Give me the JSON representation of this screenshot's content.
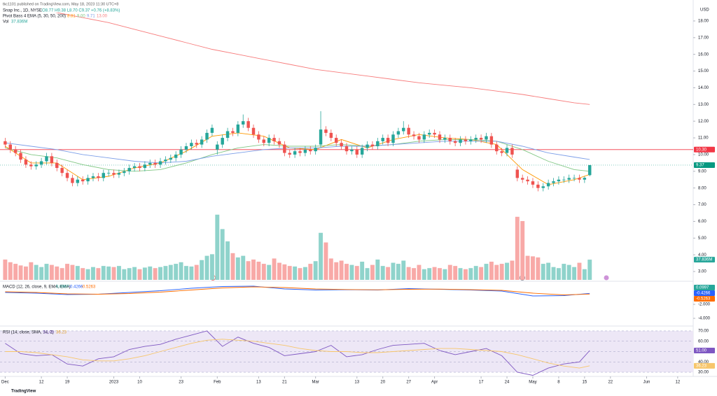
{
  "header": {
    "publisher": "tkc1101 published on TradingView.com, May 18, 2023 11:30 UTC+8",
    "currency": "USD",
    "logo": "TradingView"
  },
  "chart_data": [
    {
      "type": "candlestick",
      "title": "Snap Inc., 1D, NYSE",
      "ohlc_text": "O8.77 H9.38 L8.70 C9.37 +0.76 (+8.83%)",
      "xlim": [
        -1,
        133
      ],
      "ylim": [
        2.5,
        18.5
      ],
      "yticks": [
        {
          "value": 3,
          "label": "3.00"
        },
        {
          "value": 4,
          "label": "4.00"
        },
        {
          "value": 5,
          "label": "5.00"
        },
        {
          "value": 6,
          "label": "6.00"
        },
        {
          "value": 7,
          "label": "7.00"
        },
        {
          "value": 8,
          "label": "8.00"
        },
        {
          "value": 9,
          "label": "9.00"
        },
        {
          "value": 10,
          "label": "10.00"
        },
        {
          "value": 11,
          "label": "11.00"
        },
        {
          "value": 12,
          "label": "12.00"
        },
        {
          "value": 13,
          "label": "13.00"
        },
        {
          "value": 14,
          "label": "14.00"
        },
        {
          "value": 15,
          "label": "15.00"
        },
        {
          "value": 16,
          "label": "16.00"
        },
        {
          "value": 17,
          "label": "17.00"
        },
        {
          "value": 18,
          "label": "18.00"
        }
      ],
      "up_color": "#26a69a",
      "down_color": "#ef5350",
      "open": [
        10.8,
        10.6,
        10.3,
        10.1,
        9.7,
        9.4,
        9.3,
        9.4,
        9.6,
        9.9,
        9.5,
        9.2,
        8.9,
        8.6,
        8.3,
        8.5,
        8.4,
        8.6,
        8.7,
        8.6,
        8.9,
        8.9,
        8.8,
        8.9,
        9.0,
        9.2,
        9.3,
        9.2,
        9.4,
        9.5,
        9.4,
        9.6,
        9.7,
        9.8,
        10.0,
        10.3,
        10.5,
        10.7,
        10.6,
        10.9,
        11.3,
        10.3,
        10.6,
        11.0,
        11.4,
        11.3,
        11.8,
        12.0,
        11.6,
        11.2,
        10.9,
        10.7,
        11.0,
        10.8,
        10.6,
        10.1,
        10.0,
        10.2,
        10.1,
        10.3,
        10.2,
        10.6,
        11.5,
        11.3,
        11.0,
        10.7,
        10.5,
        10.2,
        10.3,
        10.0,
        10.4,
        10.6,
        10.5,
        10.8,
        11.0,
        10.7,
        11.2,
        11.4,
        11.6,
        11.2,
        11.1,
        10.9,
        11.2,
        11.3,
        11.2,
        10.9,
        11.0,
        10.8,
        10.7,
        10.9,
        10.8,
        10.9,
        11.0,
        10.9,
        11.1,
        10.6,
        10.2,
        10.1,
        10.4,
        9.1,
        8.6,
        8.5,
        8.4,
        8.2,
        8.0,
        8.1,
        8.3,
        8.4,
        8.5,
        8.5,
        8.6,
        8.6,
        8.5,
        8.77
      ],
      "high": [
        11.0,
        10.8,
        10.5,
        10.3,
        9.9,
        9.6,
        9.6,
        9.8,
        10.1,
        10.1,
        9.7,
        9.4,
        9.1,
        8.8,
        8.7,
        8.7,
        8.8,
        8.9,
        8.9,
        9.1,
        9.1,
        9.1,
        9.1,
        9.2,
        9.4,
        9.5,
        9.5,
        9.6,
        9.7,
        9.7,
        9.8,
        9.9,
        10.0,
        10.2,
        10.5,
        10.7,
        10.9,
        10.9,
        11.1,
        11.5,
        11.8,
        10.8,
        11.2,
        11.6,
        11.6,
        12.0,
        12.4,
        12.2,
        11.8,
        11.4,
        11.1,
        11.2,
        11.2,
        11.0,
        10.8,
        10.3,
        10.4,
        10.4,
        10.5,
        10.5,
        10.6,
        12.6,
        11.7,
        11.5,
        11.2,
        10.9,
        10.7,
        10.5,
        10.5,
        10.6,
        10.8,
        10.8,
        11.0,
        11.2,
        11.2,
        11.4,
        11.6,
        12.0,
        11.8,
        11.4,
        11.3,
        11.4,
        11.5,
        11.5,
        11.4,
        11.2,
        11.2,
        11.0,
        11.1,
        11.1,
        11.1,
        11.2,
        11.2,
        11.3,
        11.3,
        10.8,
        10.4,
        10.6,
        10.6,
        9.3,
        8.8,
        8.7,
        8.6,
        8.4,
        8.3,
        8.5,
        8.6,
        8.7,
        8.7,
        8.8,
        8.8,
        8.8,
        8.7,
        9.38
      ],
      "low": [
        10.4,
        10.1,
        9.9,
        9.5,
        9.2,
        9.1,
        9.1,
        9.2,
        9.4,
        9.3,
        9.0,
        8.7,
        8.4,
        8.1,
        8.1,
        8.2,
        8.2,
        8.4,
        8.4,
        8.4,
        8.7,
        8.6,
        8.6,
        8.7,
        8.8,
        9.0,
        9.0,
        9.0,
        9.2,
        9.2,
        9.2,
        9.4,
        9.5,
        9.6,
        9.8,
        10.1,
        10.3,
        10.4,
        10.4,
        10.7,
        11.1,
        10.0,
        10.4,
        10.8,
        11.1,
        11.1,
        11.6,
        11.4,
        11.0,
        10.7,
        10.5,
        10.5,
        10.6,
        10.4,
        9.9,
        9.8,
        9.8,
        9.9,
        9.9,
        10.0,
        10.0,
        10.4,
        11.1,
        10.8,
        10.5,
        10.3,
        10.0,
        10.0,
        9.8,
        9.8,
        10.2,
        10.3,
        10.3,
        10.6,
        10.5,
        10.5,
        11.0,
        11.2,
        11.0,
        10.9,
        10.7,
        10.7,
        11.0,
        11.0,
        10.7,
        10.7,
        10.6,
        10.5,
        10.5,
        10.6,
        10.6,
        10.7,
        10.7,
        10.7,
        10.4,
        10.0,
        9.9,
        9.9,
        9.8,
        8.4,
        8.3,
        8.2,
        8.0,
        7.8,
        7.8,
        7.9,
        8.1,
        8.2,
        8.3,
        8.3,
        8.4,
        8.3,
        8.3,
        8.7
      ],
      "close": [
        10.6,
        10.3,
        10.1,
        9.7,
        9.4,
        9.3,
        9.4,
        9.6,
        9.9,
        9.5,
        9.2,
        8.9,
        8.6,
        8.3,
        8.5,
        8.4,
        8.6,
        8.7,
        8.6,
        8.9,
        8.9,
        8.8,
        8.9,
        9.0,
        9.2,
        9.3,
        9.2,
        9.4,
        9.5,
        9.4,
        9.6,
        9.7,
        9.8,
        10.0,
        10.3,
        10.5,
        10.7,
        10.6,
        10.9,
        11.3,
        11.6,
        10.6,
        11.0,
        11.4,
        11.3,
        11.8,
        12.0,
        11.6,
        11.2,
        10.9,
        10.7,
        11.0,
        10.8,
        10.6,
        10.1,
        10.0,
        10.2,
        10.1,
        10.3,
        10.2,
        10.4,
        11.5,
        11.3,
        11.0,
        10.7,
        10.5,
        10.2,
        10.3,
        10.0,
        10.4,
        10.6,
        10.5,
        10.8,
        11.0,
        10.7,
        11.2,
        11.4,
        11.6,
        11.2,
        11.1,
        10.9,
        11.2,
        11.3,
        11.2,
        10.9,
        11.0,
        10.8,
        10.7,
        10.9,
        10.8,
        10.9,
        11.0,
        10.9,
        11.1,
        10.6,
        10.2,
        10.1,
        10.4,
        10.0,
        8.6,
        8.5,
        8.4,
        8.2,
        8.0,
        8.1,
        8.3,
        8.4,
        8.5,
        8.5,
        8.6,
        8.6,
        8.5,
        8.61,
        9.37
      ],
      "indicator": {
        "name": "Pivot Bass 4 EMA (5, 30, 50, 200)",
        "legend_values": [
          "8.81",
          "9.00",
          "9.71",
          "13.00"
        ],
        "x": [
          0,
          5,
          10,
          15,
          20,
          25,
          30,
          35,
          40,
          45,
          50,
          55,
          60,
          65,
          70,
          75,
          80,
          85,
          90,
          95,
          100,
          105,
          110,
          113
        ],
        "series": [
          {
            "color": "#ff9800",
            "values": [
              10.5,
              9.5,
              9.5,
              8.5,
              8.7,
              9.2,
              9.5,
              10.2,
              11.1,
              11.3,
              11.1,
              10.4,
              10.3,
              10.9,
              10.4,
              10.9,
              11.2,
              11.0,
              10.9,
              10.6,
              9.1,
              8.2,
              8.5,
              8.81
            ]
          },
          {
            "color": "#81c784",
            "values": [
              10.4,
              10.0,
              9.8,
              9.4,
              9.1,
              9.0,
              9.1,
              9.5,
              10.0,
              10.4,
              10.6,
              10.5,
              10.5,
              10.6,
              10.5,
              10.6,
              10.8,
              10.9,
              10.9,
              10.8,
              10.3,
              9.6,
              9.1,
              9.0
            ]
          },
          {
            "color": "#7c9ee8",
            "values": [
              10.7,
              10.5,
              10.3,
              10.0,
              9.8,
              9.6,
              9.5,
              9.6,
              9.9,
              10.1,
              10.3,
              10.4,
              10.4,
              10.5,
              10.5,
              10.6,
              10.7,
              10.8,
              10.8,
              10.8,
              10.5,
              10.1,
              9.85,
              9.71
            ]
          },
          {
            "color": "#f77c7c",
            "values": [
              19.0,
              18.8,
              18.5,
              18.2,
              17.9,
              17.5,
              17.1,
              16.7,
              16.3,
              16.0,
              15.7,
              15.4,
              15.1,
              14.9,
              14.7,
              14.5,
              14.3,
              14.15,
              14.0,
              13.8,
              13.6,
              13.35,
              13.1,
              13.0
            ]
          }
        ]
      },
      "volume": {
        "name": "Vol",
        "label": "37.836M",
        "axis": "y2",
        "up_color": "#8fd3cb",
        "down_color": "#f8a9a7",
        "values": [
          38,
          33,
          30,
          27,
          25,
          33,
          28,
          24,
          30,
          28,
          25,
          22,
          30,
          28,
          26,
          22,
          20,
          24,
          22,
          26,
          25,
          24,
          26,
          20,
          22,
          24,
          20,
          23,
          25,
          22,
          24,
          26,
          28,
          30,
          33,
          26,
          25,
          28,
          37,
          45,
          48,
          122,
          95,
          72,
          50,
          42,
          45,
          35,
          38,
          34,
          30,
          28,
          40,
          32,
          29,
          26,
          25,
          22,
          24,
          30,
          35,
          88,
          70,
          40,
          33,
          36,
          30,
          28,
          26,
          34,
          22,
          28,
          38,
          26,
          24,
          32,
          30,
          36,
          24,
          22,
          28,
          20,
          22,
          24,
          22,
          20,
          28,
          26,
          22,
          20,
          22,
          26,
          24,
          30,
          34,
          28,
          30,
          32,
          36,
          118,
          110,
          45,
          44,
          42,
          30,
          32,
          24,
          22,
          30,
          28,
          24,
          32,
          20,
          37.836
        ]
      },
      "y2lim": [
        0,
        500
      ],
      "price_lines": [
        {
          "value": 10.3,
          "label": "10.30",
          "color": "#f23645"
        },
        {
          "value": 9.37,
          "label": "9.37",
          "color": "#089981"
        }
      ]
    },
    {
      "type": "line",
      "title": "MACD (12, 26, close, 9, EMA, EMA)",
      "legend_values": [
        "0.0997",
        "-0.4266",
        "-0.5263"
      ],
      "legend_colors": [
        "#26a69a",
        "#2962ff",
        "#ff6d00"
      ],
      "xlim": [
        -1,
        133
      ],
      "ylim": [
        -5,
        1
      ],
      "yticks": [
        {
          "value": -2,
          "label": "-2.000"
        },
        {
          "value": -4,
          "label": "-4.000"
        }
      ],
      "x": [
        0,
        6,
        12,
        18,
        24,
        30,
        36,
        42,
        48,
        54,
        60,
        66,
        72,
        78,
        84,
        90,
        96,
        102,
        108,
        113
      ],
      "series": [
        {
          "color": "#2962ff",
          "values": [
            -0.3,
            -0.4,
            -0.6,
            -0.55,
            -0.3,
            -0.05,
            0.3,
            0.55,
            0.6,
            0.2,
            0.05,
            0.1,
            0.05,
            0.25,
            0.15,
            0.05,
            -0.1,
            -0.8,
            -0.75,
            -0.4266
          ]
        },
        {
          "color": "#ff6d00",
          "values": [
            -0.2,
            -0.3,
            -0.5,
            -0.55,
            -0.45,
            -0.25,
            0.05,
            0.35,
            0.5,
            0.4,
            0.2,
            0.12,
            0.08,
            0.15,
            0.18,
            0.1,
            0.0,
            -0.4,
            -0.65,
            -0.5263
          ]
        }
      ]
    },
    {
      "type": "line",
      "title": "RSI (14, close, SMA, 14, 2)",
      "legend_values": [
        "51.00",
        "36.23"
      ],
      "legend_colors": [
        "#7e57c2",
        "#e0a030"
      ],
      "xlim": [
        -1,
        133
      ],
      "ylim": [
        28,
        72
      ],
      "yticks": [
        {
          "value": 70,
          "label": "70.00"
        },
        {
          "value": 60,
          "label": "60.00"
        },
        {
          "value": 50,
          "label": "50.00"
        },
        {
          "value": 40,
          "label": "40.00"
        },
        {
          "value": 30,
          "label": "30.00"
        }
      ],
      "band_color": "#ede7f6",
      "x": [
        0,
        3,
        6,
        9,
        12,
        15,
        18,
        21,
        24,
        27,
        30,
        33,
        36,
        39,
        42,
        45,
        48,
        51,
        54,
        57,
        60,
        63,
        66,
        69,
        72,
        75,
        78,
        81,
        84,
        87,
        90,
        93,
        96,
        99,
        102,
        105,
        108,
        111,
        113
      ],
      "series": [
        {
          "color": "#7e57c2",
          "values": [
            58,
            48,
            46,
            47,
            38,
            36,
            43,
            45,
            52,
            55,
            57,
            62,
            66,
            70,
            55,
            64,
            58,
            54,
            46,
            48,
            50,
            56,
            45,
            47,
            52,
            56,
            57,
            58,
            51,
            47,
            50,
            53,
            46,
            30,
            27,
            34,
            38,
            40,
            51
          ]
        },
        {
          "color": "#f7c66b",
          "values": [
            50,
            50,
            49,
            47,
            45,
            42,
            41,
            41,
            43,
            46,
            50,
            54,
            58,
            61,
            62,
            61,
            60,
            58,
            56,
            53,
            51,
            50,
            50,
            49,
            49,
            50,
            51,
            52,
            53,
            53,
            52,
            51,
            50,
            47,
            43,
            39,
            36,
            34,
            36.23
          ]
        }
      ],
      "xticks": [
        {
          "value": 0,
          "label": "Dec"
        },
        {
          "value": 7,
          "label": "12"
        },
        {
          "value": 12,
          "label": "19"
        },
        {
          "value": 21,
          "label": "2023"
        },
        {
          "value": 26,
          "label": "10"
        },
        {
          "value": 34,
          "label": "23"
        },
        {
          "value": 41,
          "label": "Feb"
        },
        {
          "value": 49,
          "label": "13"
        },
        {
          "value": 54,
          "label": "21"
        },
        {
          "value": 60,
          "label": "Mar"
        },
        {
          "value": 68,
          "label": "13"
        },
        {
          "value": 73,
          "label": "20"
        },
        {
          "value": 78,
          "label": "27"
        },
        {
          "value": 83,
          "label": "Apr"
        },
        {
          "value": 92,
          "label": "17"
        },
        {
          "value": 97,
          "label": "24"
        },
        {
          "value": 102,
          "label": "May"
        },
        {
          "value": 107,
          "label": "8"
        },
        {
          "value": 112,
          "label": "15"
        },
        {
          "value": 117,
          "label": "22"
        },
        {
          "value": 124,
          "label": "Jun"
        },
        {
          "value": 130,
          "label": "12"
        }
      ]
    }
  ]
}
